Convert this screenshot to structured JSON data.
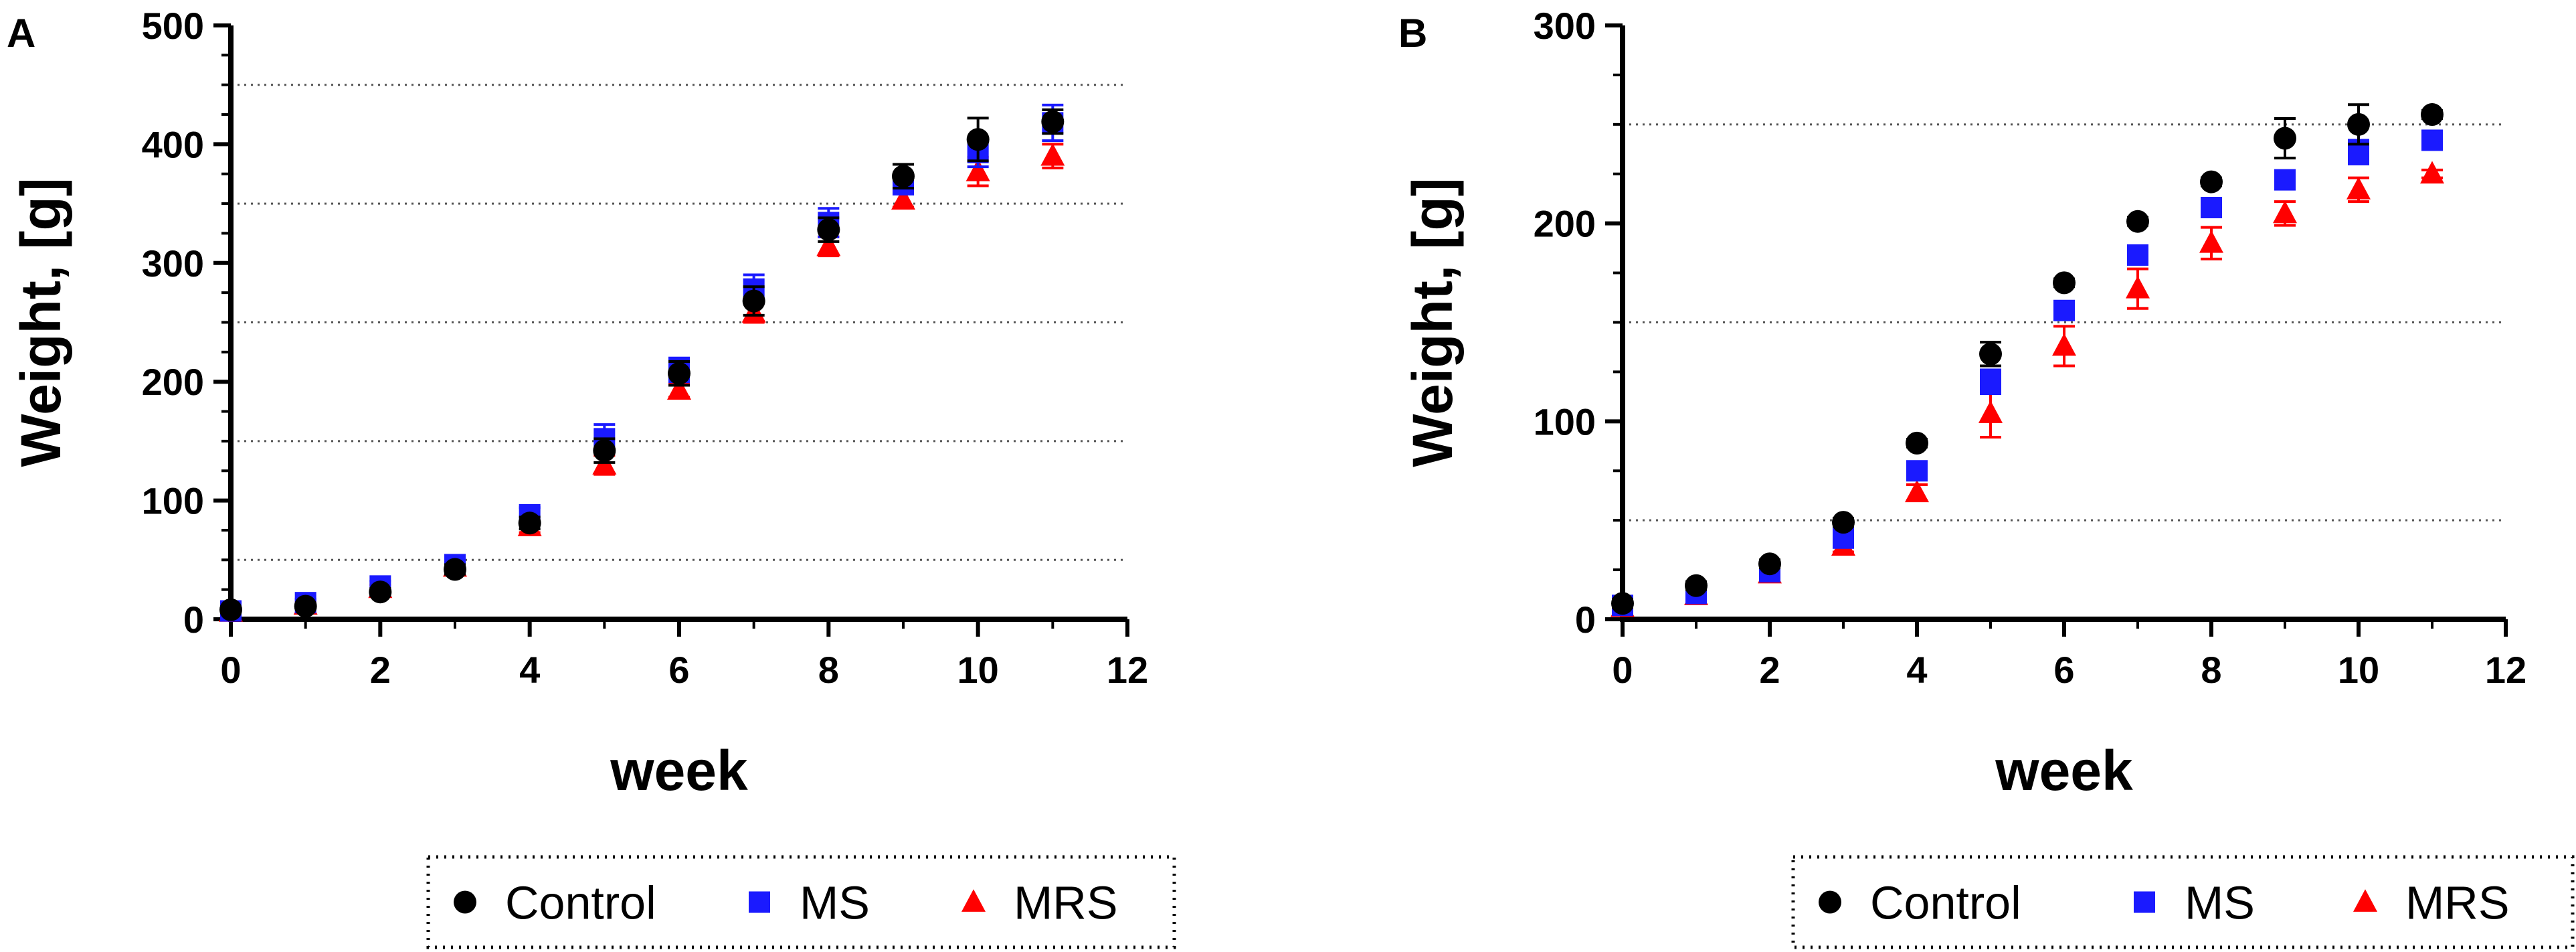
{
  "chart_data": [
    {
      "type": "scatter",
      "panel_label": "A",
      "xlabel": "week",
      "ylabel": "Weight, [g]",
      "xlim": [
        0,
        12
      ],
      "ylim": [
        0,
        500
      ],
      "xticks": [
        0,
        2,
        4,
        6,
        8,
        10,
        12
      ],
      "yticks": [
        0,
        100,
        200,
        300,
        400,
        500
      ],
      "gridlines_y": [
        50,
        150,
        250,
        350,
        450
      ],
      "x": [
        0,
        1,
        2,
        3,
        4,
        5,
        6,
        7,
        8,
        9,
        10,
        11
      ],
      "series": [
        {
          "name": "Control",
          "marker": "circle",
          "color": "#000000",
          "values": [
            8,
            11,
            23,
            42,
            81,
            142,
            207,
            268,
            328,
            373,
            404,
            419
          ],
          "errors": [
            2,
            2,
            3,
            4,
            5,
            10,
            10,
            12,
            10,
            10,
            18,
            10
          ]
        },
        {
          "name": "MS",
          "marker": "square",
          "color": "#1a1aff",
          "values": [
            7,
            14,
            28,
            46,
            88,
            152,
            210,
            278,
            334,
            366,
            393,
            418
          ],
          "errors": [
            2,
            3,
            4,
            5,
            6,
            12,
            10,
            12,
            12,
            8,
            12,
            15
          ]
        },
        {
          "name": "MRS",
          "marker": "triangle",
          "color": "#ff0000",
          "values": [
            6,
            12,
            26,
            44,
            78,
            130,
            193,
            258,
            314,
            353,
            377,
            390
          ],
          "errors": [
            2,
            2,
            3,
            4,
            5,
            8,
            6,
            8,
            8,
            6,
            12,
            10
          ]
        }
      ],
      "legend": [
        "Control",
        "MS",
        "MRS"
      ]
    },
    {
      "type": "scatter",
      "panel_label": "B",
      "xlabel": "week",
      "ylabel": "Weight, [g]",
      "xlim": [
        0,
        12
      ],
      "ylim": [
        0,
        300
      ],
      "xticks": [
        0,
        2,
        4,
        6,
        8,
        10,
        12
      ],
      "yticks": [
        0,
        100,
        200,
        300
      ],
      "gridlines_y": [
        50,
        150,
        250
      ],
      "x": [
        0,
        1,
        2,
        3,
        4,
        5,
        6,
        7,
        8,
        9,
        10,
        11
      ],
      "series": [
        {
          "name": "Control",
          "marker": "circle",
          "color": "#000000",
          "values": [
            8,
            17,
            28,
            49,
            89,
            134,
            170,
            201,
            221,
            243,
            250,
            255
          ],
          "errors": [
            2,
            2,
            2,
            2,
            2,
            6,
            2,
            2,
            2,
            10,
            10,
            2
          ]
        },
        {
          "name": "MS",
          "marker": "square",
          "color": "#1a1aff",
          "values": [
            7,
            13,
            24,
            41,
            75,
            120,
            156,
            184,
            208,
            222,
            236,
            242
          ],
          "errors": [
            2,
            2,
            2,
            3,
            3,
            6,
            4,
            4,
            4,
            4,
            6,
            2
          ]
        },
        {
          "name": "MRS",
          "marker": "triangle",
          "color": "#ff0000",
          "values": [
            6,
            12,
            23,
            37,
            64,
            104,
            138,
            167,
            190,
            205,
            217,
            225
          ],
          "errors": [
            2,
            2,
            2,
            3,
            4,
            12,
            10,
            10,
            8,
            6,
            6,
            2
          ]
        }
      ],
      "legend": [
        "Control",
        "MS",
        "MRS"
      ]
    }
  ]
}
